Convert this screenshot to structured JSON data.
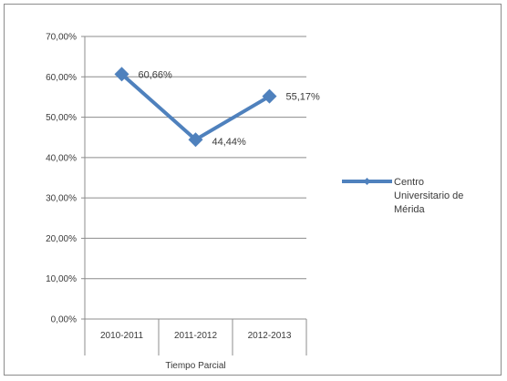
{
  "chart_data": {
    "type": "line",
    "categories": [
      "2010-2011",
      "2011-2012",
      "2012-2013"
    ],
    "series": [
      {
        "name": "Centro Universitario de Mérida",
        "values": [
          60.66,
          44.44,
          55.17
        ],
        "labels": [
          "60,66%",
          "44,44%",
          "55,17%"
        ],
        "color": "#4f81bd",
        "marker": "diamond"
      }
    ],
    "ylim": [
      0,
      70
    ],
    "yticks": [
      0,
      10,
      20,
      30,
      40,
      50,
      60,
      70
    ],
    "ytick_labels": [
      "0,00%",
      "10,00%",
      "20,00%",
      "30,00%",
      "40,00%",
      "50,00%",
      "60,00%",
      "70,00%"
    ],
    "xlabel": "Tiempo Parcial",
    "ylabel": "",
    "title": "",
    "grid": true,
    "legend_position": "right",
    "legend_lines": [
      "Centro",
      "Universitario de",
      "Mérida"
    ]
  }
}
